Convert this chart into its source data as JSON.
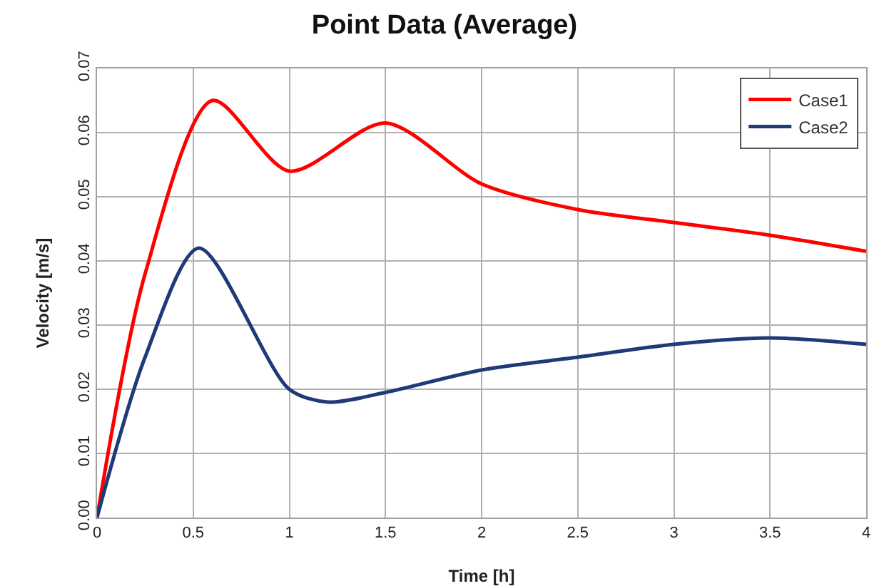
{
  "chart_data": {
    "type": "line",
    "title": "Point Data (Average)",
    "xlabel": "Time [h]",
    "ylabel": "Velocity [m/s]",
    "series": [
      {
        "name": "Case1",
        "color": "#ff0000",
        "x": [
          0,
          0.25,
          0.6,
          1,
          1.5,
          2,
          2.5,
          3,
          3.5,
          4
        ],
        "values": [
          0,
          0.038,
          0.065,
          0.054,
          0.0615,
          0.052,
          0.048,
          0.046,
          0.044,
          0.0415
        ]
      },
      {
        "name": "Case2",
        "color": "#1f3a78",
        "x": [
          0,
          0.25,
          0.53,
          1,
          1.2,
          1.5,
          2,
          2.5,
          3,
          3.5,
          4
        ],
        "values": [
          0,
          0.025,
          0.042,
          0.02,
          0.018,
          0.0195,
          0.023,
          0.025,
          0.027,
          0.028,
          0.027
        ]
      }
    ],
    "xlim": [
      0,
      4
    ],
    "xticks": [
      0,
      0.5,
      1,
      1.5,
      2,
      2.5,
      3,
      3.5,
      4
    ],
    "ylim": [
      0,
      0.07
    ],
    "yticks": [
      {
        "value": 0,
        "label": "0.00"
      },
      {
        "value": 0.01,
        "label": "0.01"
      },
      {
        "value": 0.02,
        "label": "0.02"
      },
      {
        "value": 0.03,
        "label": "0.03"
      },
      {
        "value": 0.04,
        "label": "0.04"
      },
      {
        "value": 0.05,
        "label": "0.05"
      },
      {
        "value": 0.06,
        "label": "0.06"
      },
      {
        "value": 0.07,
        "label": "0.07"
      }
    ],
    "grid": true,
    "legend": "top right",
    "marker": "none",
    "line_style": "solid"
  }
}
